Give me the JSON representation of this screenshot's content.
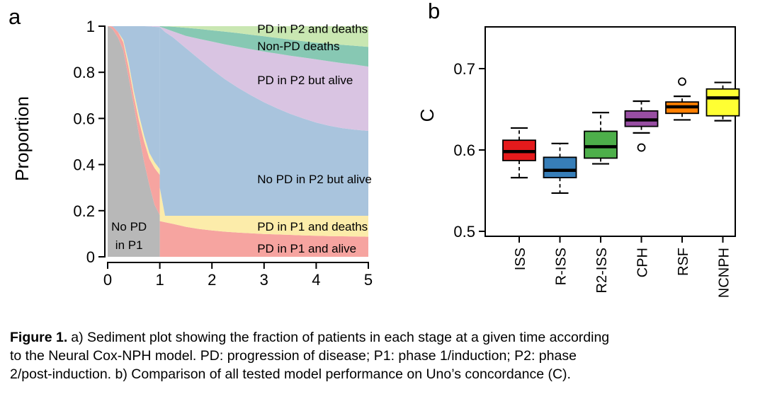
{
  "figure": {
    "panel_a_label": "a",
    "panel_b_label": "b"
  },
  "caption": {
    "title": "Figure 1.",
    "lines": [
      "a) Sediment plot showing the fraction of patients in each stage at a given time according",
      "to the Neural Cox-NPH model. PD: progression of disease; P1: phase 1/induction; P2: phase",
      "2/post-induction. b) Comparison of all tested model performance on Uno’s concordance (C)."
    ]
  },
  "chart_data": [
    {
      "type": "area",
      "panel": "a",
      "title": "",
      "xlabel": "",
      "ylabel": "Proportion",
      "xlim": [
        0,
        5
      ],
      "ylim": [
        0,
        1
      ],
      "x_ticks": [
        "0",
        "1",
        "2",
        "3",
        "4",
        "5"
      ],
      "y_ticks": [
        "1",
        "0.8",
        "0.6",
        "0.4",
        "0.2",
        "0"
      ],
      "grid": false,
      "series": [
        {
          "name": "No PD in P1",
          "color": "#b8b8b8"
        },
        {
          "name": "PD in P1 and alive",
          "color": "#f6a4a0"
        },
        {
          "name": "PD in P1 and deaths",
          "color": "#fcecaa"
        },
        {
          "name": "No PD in P2 but alive",
          "color": "#a9c4dd"
        },
        {
          "name": "PD in P2 but alive",
          "color": "#d9c4e2"
        },
        {
          "name": "Non-PD deaths",
          "color": "#87c8b3"
        },
        {
          "name": "PD in P2 and deaths",
          "color": "#c9e7b2"
        }
      ],
      "phase1": {
        "x": [
          0,
          0.05,
          0.1,
          0.2,
          0.3,
          0.4,
          0.5,
          0.6,
          0.7,
          0.8,
          0.9,
          1.0
        ],
        "gray_top": [
          1.0,
          0.995,
          0.985,
          0.95,
          0.895,
          0.78,
          0.66,
          0.53,
          0.41,
          0.31,
          0.225,
          0.18
        ],
        "red_top": [
          1.0,
          1.0,
          0.998,
          0.975,
          0.93,
          0.825,
          0.7,
          0.59,
          0.5,
          0.425,
          0.385,
          0.355
        ],
        "yellow_top": [
          1.0,
          1.0,
          0.998,
          0.975,
          0.94,
          0.845,
          0.72,
          0.615,
          0.525,
          0.45,
          0.41,
          0.38
        ],
        "blue_top": [
          1.0,
          1.0,
          1.0,
          1.0,
          1.0,
          1.0,
          1.0,
          1.0,
          1.0,
          0.999,
          0.997,
          0.996
        ]
      },
      "phase2": {
        "x": [
          1.0,
          1.1,
          1.25,
          1.5,
          1.75,
          2.0,
          2.25,
          2.5,
          2.75,
          3.0,
          3.25,
          3.5,
          3.75,
          4.0,
          4.25,
          4.5,
          4.75,
          5.0
        ],
        "red_top": [
          0.155,
          0.15,
          0.143,
          0.13,
          0.121,
          0.114,
          0.109,
          0.105,
          0.102,
          0.099,
          0.097,
          0.095,
          0.093,
          0.091,
          0.09,
          0.089,
          0.088,
          0.087
        ],
        "yellow_top": [
          0.3,
          0.178,
          0.178,
          0.178,
          0.178,
          0.178,
          0.178,
          0.178,
          0.178,
          0.178,
          0.178,
          0.178,
          0.178,
          0.178,
          0.178,
          0.178,
          0.178,
          0.178
        ],
        "blue_top": [
          0.996,
          0.975,
          0.952,
          0.905,
          0.858,
          0.812,
          0.77,
          0.733,
          0.7,
          0.67,
          0.644,
          0.62,
          0.6,
          0.582,
          0.568,
          0.558,
          0.551,
          0.546
        ],
        "purple_top": [
          0.998,
          0.99,
          0.978,
          0.958,
          0.945,
          0.933,
          0.921,
          0.91,
          0.9,
          0.89,
          0.881,
          0.872,
          0.864,
          0.856,
          0.848,
          0.84,
          0.833,
          0.825
        ],
        "teal_top": [
          1.0,
          0.999,
          0.998,
          0.993,
          0.988,
          0.982,
          0.976,
          0.97,
          0.963,
          0.956,
          0.949,
          0.942,
          0.935,
          0.928,
          0.924,
          0.919,
          0.915,
          0.91
        ]
      },
      "annotations": [
        {
          "text": "PD in P2 and deaths",
          "x": 2.87,
          "y": 0.99,
          "anchor": "start"
        },
        {
          "text": "Non-PD deaths",
          "x": 2.87,
          "y": 0.914,
          "anchor": "start"
        },
        {
          "text": "PD in P2 but alive",
          "x": 2.87,
          "y": 0.767,
          "anchor": "start"
        },
        {
          "text": "No PD in P2 but alive",
          "x": 2.87,
          "y": 0.337,
          "anchor": "start"
        },
        {
          "text": "PD in P1 and deaths",
          "x": 2.87,
          "y": 0.132,
          "anchor": "start"
        },
        {
          "text": "PD in P1 and alive",
          "x": 2.87,
          "y": 0.037,
          "anchor": "start"
        },
        {
          "text": "No PD",
          "x": 0.41,
          "y": 0.132,
          "anchor": "middle"
        },
        {
          "text": "in P1",
          "x": 0.41,
          "y": 0.052,
          "anchor": "middle"
        }
      ]
    },
    {
      "type": "box",
      "panel": "b",
      "title": "",
      "xlabel": "",
      "ylabel": "C",
      "ylim": [
        0.493,
        0.752
      ],
      "y_ticks": [
        "0.5",
        "0.6",
        "0.7"
      ],
      "grid": false,
      "categories": [
        "ISS",
        "R-ISS",
        "R2-ISS",
        "CPH",
        "RSF",
        "NCNPH"
      ],
      "boxes": [
        {
          "name": "ISS",
          "color": "#e41a1c",
          "whisker_low": 0.566,
          "q1": 0.587,
          "median": 0.598,
          "q3": 0.612,
          "whisker_high": 0.627,
          "outliers": []
        },
        {
          "name": "R-ISS",
          "color": "#377eb8",
          "whisker_low": 0.547,
          "q1": 0.566,
          "median": 0.575,
          "q3": 0.591,
          "whisker_high": 0.608,
          "outliers": []
        },
        {
          "name": "R2-ISS",
          "color": "#4daf4a",
          "whisker_low": 0.583,
          "q1": 0.59,
          "median": 0.604,
          "q3": 0.623,
          "whisker_high": 0.646,
          "outliers": []
        },
        {
          "name": "CPH",
          "color": "#984ea3",
          "whisker_low": 0.621,
          "q1": 0.629,
          "median": 0.637,
          "q3": 0.648,
          "whisker_high": 0.66,
          "outliers": [
            0.603
          ]
        },
        {
          "name": "RSF",
          "color": "#ff7f00",
          "whisker_low": 0.637,
          "q1": 0.645,
          "median": 0.653,
          "q3": 0.659,
          "whisker_high": 0.666,
          "outliers": [
            0.684
          ]
        },
        {
          "name": "NCNPH",
          "color": "#ffff33",
          "whisker_low": 0.636,
          "q1": 0.642,
          "median": 0.664,
          "q3": 0.675,
          "whisker_high": 0.683,
          "outliers": []
        }
      ]
    }
  ]
}
